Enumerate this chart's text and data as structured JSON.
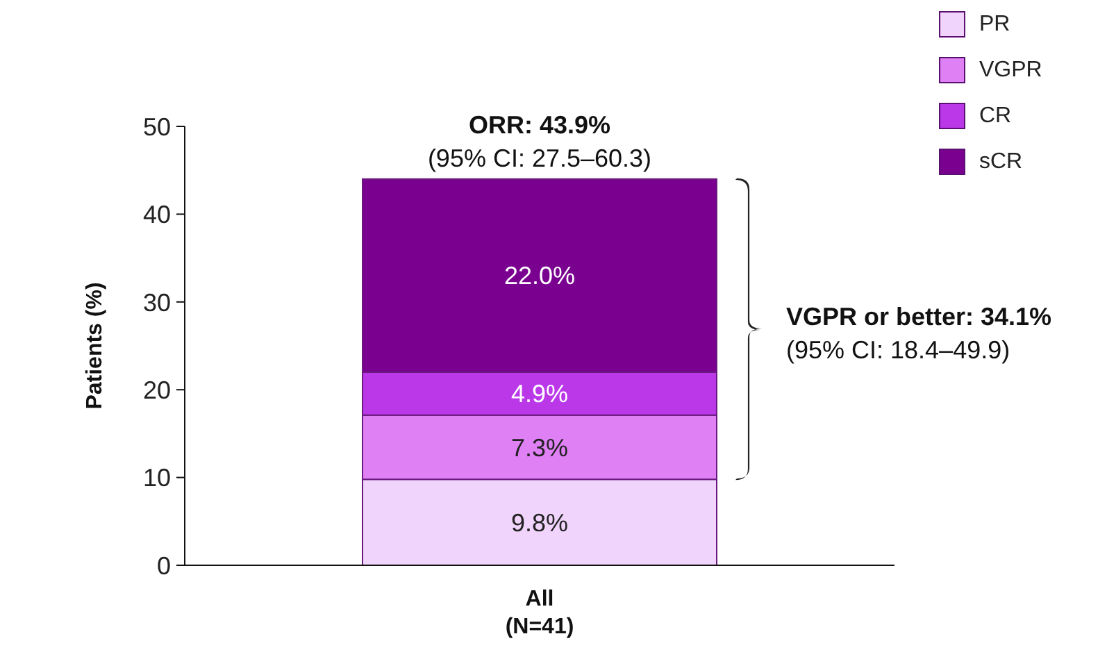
{
  "chart_data": {
    "type": "bar",
    "stacked": true,
    "categories": [
      "All\n(N=41)"
    ],
    "ylabel": "Patients (%)",
    "ylim": [
      0,
      50
    ],
    "yticks": [
      0,
      10,
      20,
      30,
      40,
      50
    ],
    "legend": "top right",
    "series": [
      {
        "name": "PR",
        "color": "#f0d4fb",
        "values": [
          9.8
        ],
        "value_labels": [
          "9.8%"
        ]
      },
      {
        "name": "VGPR",
        "color": "#e080f5",
        "values": [
          7.3
        ],
        "value_labels": [
          "7.3%"
        ]
      },
      {
        "name": "CR",
        "color": "#ba38e8",
        "values": [
          4.9
        ],
        "value_labels": [
          "4.9%"
        ]
      },
      {
        "name": "sCR",
        "color": "#7a0090",
        "values": [
          22.0
        ],
        "value_labels": [
          "22.0%"
        ]
      }
    ],
    "annotations": [
      {
        "text": "ORR: 43.9%",
        "y": 43.9
      },
      {
        "text": "(95% CI: 27.5–60.3)",
        "y": 43.9
      },
      "VGPR or better: 34.1%",
      "(95% CI: 18.4–49.9)"
    ]
  }
}
